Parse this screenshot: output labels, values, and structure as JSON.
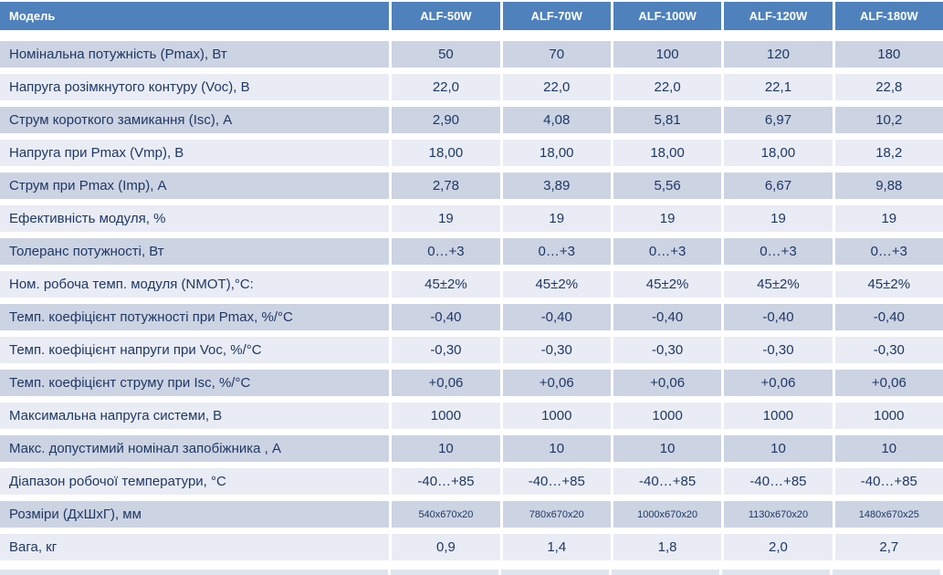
{
  "colors": {
    "header_bg": "#4f81bd",
    "header_text": "#ffffff",
    "row_dark_bg": "#ccd3e3",
    "row_light_bg": "#e9ecf4",
    "cell_text": "#1f3864",
    "cutoff_strip_bg": "#dfe5ef"
  },
  "table": {
    "columns": [
      "Модель",
      "ALF-50W",
      "ALF-70W",
      "ALF-100W",
      "ALF-120W",
      "ALF-180W"
    ],
    "rows": [
      {
        "label": "Номінальна потужність (Pmax), Вт",
        "values": [
          "50",
          "70",
          "100",
          "120",
          "180"
        ]
      },
      {
        "label": "Напруга розімкнутого контуру (Voc), В",
        "values": [
          "22,0",
          "22,0",
          "22,0",
          "22,1",
          "22,8"
        ]
      },
      {
        "label": "Струм короткого замикання (Isc), А",
        "values": [
          "2,90",
          "4,08",
          "5,81",
          "6,97",
          "10,2"
        ]
      },
      {
        "label": "Напруга при Pmax (Vmp), В",
        "values": [
          "18,00",
          "18,00",
          "18,00",
          "18,00",
          "18,2"
        ]
      },
      {
        "label": "Струм при Pmax (Imp), А",
        "values": [
          "2,78",
          "3,89",
          "5,56",
          "6,67",
          "9,88"
        ]
      },
      {
        "label": "Ефективність модуля, %",
        "values": [
          "19",
          "19",
          "19",
          "19",
          "19"
        ]
      },
      {
        "label": "Толеранс потужності, Вт",
        "values": [
          "0…+3",
          "0…+3",
          "0…+3",
          "0…+3",
          "0…+3"
        ]
      },
      {
        "label": "Ном. робоча темп. модуля (NMOT),°С:",
        "values": [
          "45±2%",
          "45±2%",
          "45±2%",
          "45±2%",
          "45±2%"
        ]
      },
      {
        "label": "Темп. коефіцієнт потужності при Pmax, %/°С",
        "values": [
          "-0,40",
          "-0,40",
          "-0,40",
          "-0,40",
          "-0,40"
        ]
      },
      {
        "label": "Темп. коефіцієнт напруги при Voc, %/°С",
        "values": [
          "-0,30",
          "-0,30",
          "-0,30",
          "-0,30",
          "-0,30"
        ]
      },
      {
        "label": "Темп. коефіцієнт струму при Isc, %/°С",
        "values": [
          "+0,06",
          "+0,06",
          "+0,06",
          "+0,06",
          "+0,06"
        ]
      },
      {
        "label": "Максимальна напруга системи, В",
        "values": [
          "1000",
          "1000",
          "1000",
          "1000",
          "1000"
        ]
      },
      {
        "label": "Макс. допустимий номінал запобіжника , А",
        "values": [
          "10",
          "10",
          "10",
          "10",
          "10"
        ]
      },
      {
        "label": "Діапазон робочої температури, °С",
        "values": [
          "-40…+85",
          "-40…+85",
          "-40…+85",
          "-40…+85",
          "-40…+85"
        ]
      },
      {
        "label": "Розміри (ДхШхГ), мм",
        "values": [
          "540x670x20",
          "780x670x20",
          "1000x670x20",
          "1130x670x20",
          "1480x670x25"
        ],
        "small": true
      },
      {
        "label": "Вага, кг",
        "values": [
          "0,9",
          "1,4",
          "1,8",
          "2,0",
          "2,7"
        ]
      }
    ]
  },
  "chart_data": {
    "type": "table",
    "title": "",
    "columns": [
      "Модель",
      "ALF-50W",
      "ALF-70W",
      "ALF-100W",
      "ALF-120W",
      "ALF-180W"
    ],
    "rows": [
      [
        "Номінальна потужність (Pmax), Вт",
        "50",
        "70",
        "100",
        "120",
        "180"
      ],
      [
        "Напруга розімкнутого контуру (Voc), В",
        "22,0",
        "22,0",
        "22,0",
        "22,1",
        "22,8"
      ],
      [
        "Струм короткого замикання (Isc), А",
        "2,90",
        "4,08",
        "5,81",
        "6,97",
        "10,2"
      ],
      [
        "Напруга при Pmax (Vmp), В",
        "18,00",
        "18,00",
        "18,00",
        "18,00",
        "18,2"
      ],
      [
        "Струм при Pmax (Imp), А",
        "2,78",
        "3,89",
        "5,56",
        "6,67",
        "9,88"
      ],
      [
        "Ефективність модуля, %",
        "19",
        "19",
        "19",
        "19",
        "19"
      ],
      [
        "Толеранс потужності, Вт",
        "0…+3",
        "0…+3",
        "0…+3",
        "0…+3",
        "0…+3"
      ],
      [
        "Ном. робоча темп. модуля (NMOT),°С:",
        "45±2%",
        "45±2%",
        "45±2%",
        "45±2%",
        "45±2%"
      ],
      [
        "Темп. коефіцієнт потужності при Pmax, %/°С",
        "-0,40",
        "-0,40",
        "-0,40",
        "-0,40",
        "-0,40"
      ],
      [
        "Темп. коефіцієнт напруги при Voc, %/°С",
        "-0,30",
        "-0,30",
        "-0,30",
        "-0,30",
        "-0,30"
      ],
      [
        "Темп. коефіцієнт струму при Isc, %/°С",
        "+0,06",
        "+0,06",
        "+0,06",
        "+0,06",
        "+0,06"
      ],
      [
        "Максимальна напруга системи, В",
        "1000",
        "1000",
        "1000",
        "1000",
        "1000"
      ],
      [
        "Макс. допустимий номінал запобіжника , А",
        "10",
        "10",
        "10",
        "10",
        "10"
      ],
      [
        "Діапазон робочої температури, °С",
        "-40…+85",
        "-40…+85",
        "-40…+85",
        "-40…+85",
        "-40…+85"
      ],
      [
        "Розміри (ДхШхГ), мм",
        "540x670x20",
        "780x670x20",
        "1000x670x20",
        "1130x670x20",
        "1480x670x25"
      ],
      [
        "Вага, кг",
        "0,9",
        "1,4",
        "1,8",
        "2,0",
        "2,7"
      ]
    ]
  }
}
